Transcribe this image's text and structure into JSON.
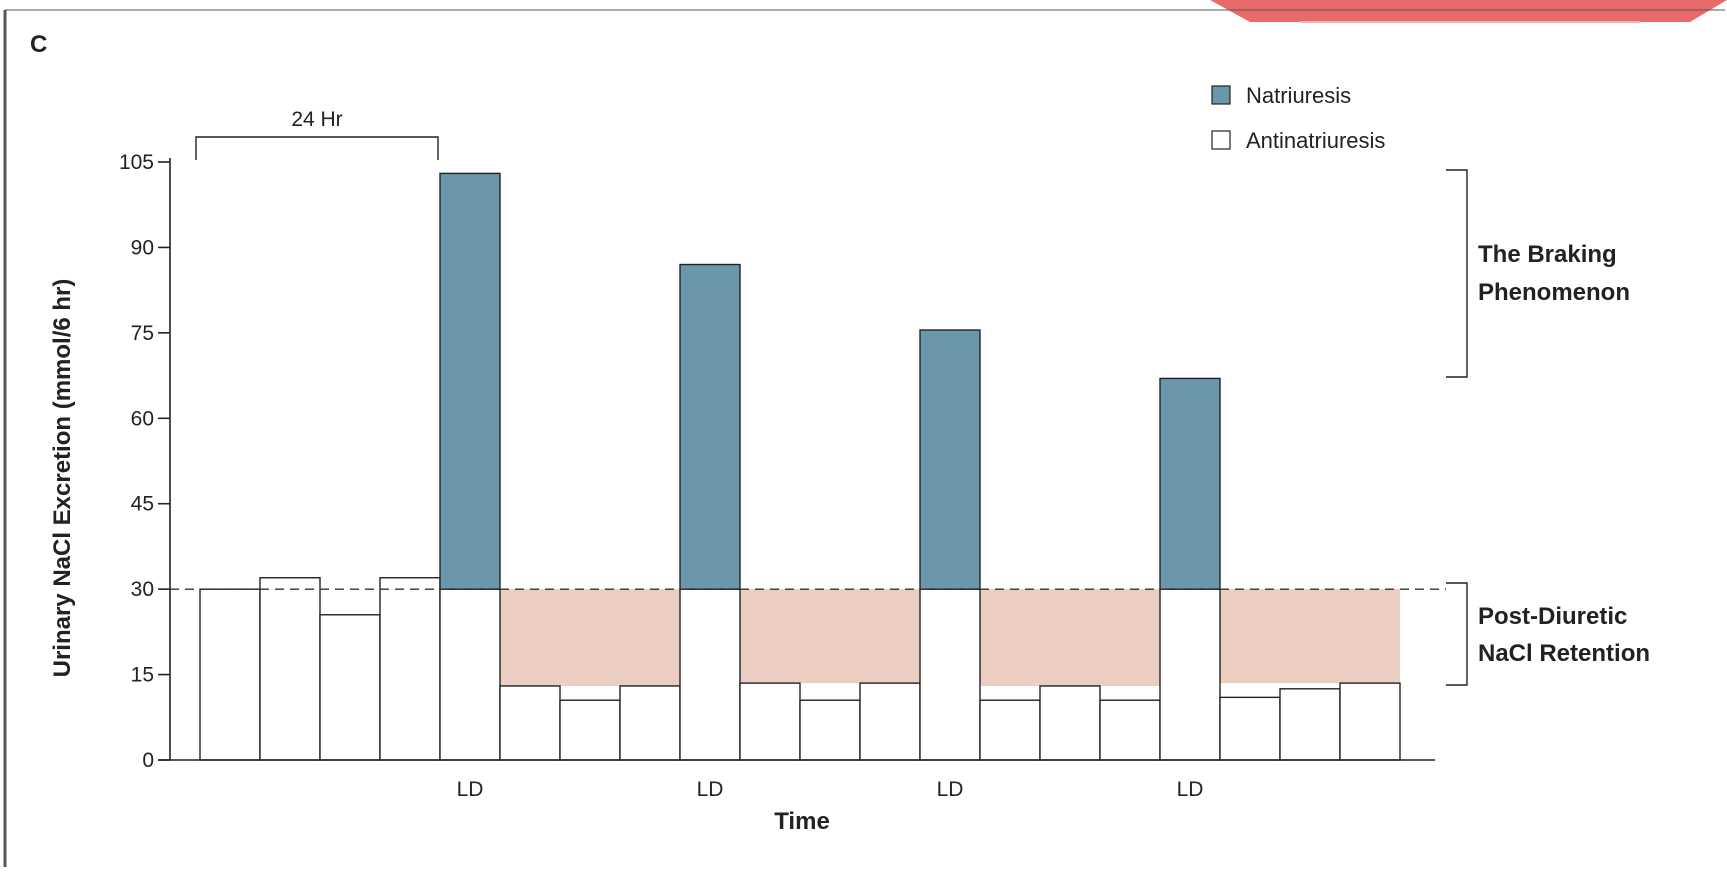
{
  "panel_label": "C",
  "chart_data": {
    "type": "bar",
    "title": "",
    "xlabel": "Time",
    "ylabel": "Urinary NaCl Excretion (mmol/6 hr)",
    "ylim": [
      0,
      105
    ],
    "yticks": [
      0,
      15,
      30,
      45,
      60,
      75,
      90,
      105
    ],
    "baseline_value": 30,
    "interval_label": "24 Hr",
    "x_tick_labels": [
      "LD",
      "LD",
      "LD",
      "LD"
    ],
    "legend": {
      "placement": "top-right",
      "items": [
        {
          "label": "Natriuresis",
          "color": "#6a97ab"
        },
        {
          "label": "Antinatriuresis",
          "color": "#ffffff"
        }
      ]
    },
    "annotations": {
      "braking": [
        "The Braking",
        "Phenomenon"
      ],
      "retention": [
        "Post-Diuretic",
        "NaCl Retention"
      ]
    },
    "colors": {
      "natriuresis": "#6a97ab",
      "antinatriuresis": "#ffffff",
      "retention_fill": "#ebcdc2",
      "window_accent": "#e86a6a"
    },
    "series": [
      {
        "name": "Natriuresis",
        "bars": [
          {
            "index": 4,
            "from": 30,
            "to": 103
          },
          {
            "index": 8,
            "from": 30,
            "to": 87
          },
          {
            "index": 12,
            "from": 30,
            "to": 75.5
          },
          {
            "index": 16,
            "from": 30,
            "to": 67
          }
        ]
      },
      {
        "name": "Antinatriuresis",
        "values": [
          30,
          32,
          25.5,
          32,
          30,
          13,
          10.5,
          13,
          30,
          13.5,
          10.5,
          13.5,
          30,
          10.5,
          13,
          10.5,
          30,
          11,
          12.5,
          13.5
        ]
      }
    ],
    "ld_bar_indices": [
      4,
      8,
      12,
      16
    ],
    "retention_regions": [
      {
        "from_index": 5,
        "to_index": 7
      },
      {
        "from_index": 9,
        "to_index": 11
      },
      {
        "from_index": 13,
        "to_index": 15
      },
      {
        "from_index": 17,
        "to_index": 19
      }
    ]
  }
}
